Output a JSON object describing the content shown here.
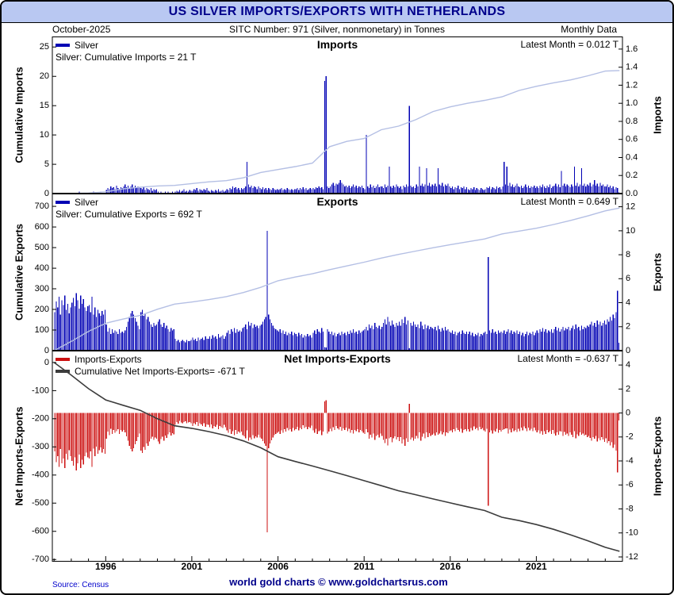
{
  "header": {
    "title": "US SILVER IMPORTS/EXPORTS WITH NETHERLANDS"
  },
  "subheader": {
    "date": "October-2025",
    "sitc": "SITC Number: 971 (Silver, nonmonetary) in Tonnes",
    "frequency": "Monthly Data"
  },
  "footer": {
    "source": "Source: Census",
    "branding": "world gold charts © www.goldchartsrus.com"
  },
  "colors": {
    "title_bg": "#b9c8f2",
    "navy": "#00008b",
    "bar_blue": "#0000b4",
    "cumulative_line_light": "#b4bfe4",
    "bar_red": "#cc1111",
    "net_line": "#3c3c3c"
  },
  "chart_data": {
    "type": "bar",
    "title": "US SILVER IMPORTS/EXPORTS WITH NETHERLANDS",
    "x_domain": [
      1992.9,
      2026.0
    ],
    "x_ticks": [
      1996,
      2001,
      2006,
      2011,
      2016,
      2021
    ],
    "monthly_start_year": 1993,
    "line_x": [
      1993,
      1994,
      1995,
      1996,
      1997,
      1998,
      1999,
      2000,
      2001,
      2002,
      2003,
      2004,
      2005,
      2006,
      2007,
      2008,
      2009,
      2010,
      2011,
      2012,
      2013,
      2014,
      2015,
      2016,
      2017,
      2018,
      2019,
      2020,
      2021,
      2022,
      2023,
      2024,
      2025,
      2025.83
    ],
    "series": {
      "imports_monthly": [
        0,
        0,
        0,
        0,
        0,
        0,
        0,
        0,
        0,
        0,
        0,
        0,
        0,
        0,
        0.01,
        0,
        0,
        0.02,
        0,
        0,
        0,
        0.01,
        0,
        0,
        0,
        0.01,
        0,
        0.02,
        0,
        0,
        0.01,
        0,
        0.02,
        0,
        0.01,
        0,
        0.04,
        0.06,
        0.05,
        0.08,
        0.06,
        0.07,
        0.05,
        0.09,
        0.06,
        0.05,
        0.07,
        0.06,
        0.08,
        0.1,
        0.07,
        0.09,
        0.06,
        0.08,
        0.1,
        0.07,
        0.09,
        0.06,
        0.08,
        0.07,
        0.06,
        0.05,
        0.07,
        0.04,
        0.06,
        0.05,
        0.04,
        0.06,
        0.03,
        0.05,
        0.04,
        0.05,
        0.02,
        0.01,
        0.02,
        0.01,
        0,
        0.02,
        0.01,
        0.02,
        0,
        0.01,
        0.02,
        0.01,
        0.02,
        0.03,
        0.02,
        0.04,
        0.02,
        0.03,
        0.05,
        0.02,
        0.03,
        0.02,
        0.04,
        0.03,
        0.03,
        0.05,
        0.04,
        0.06,
        0.03,
        0.05,
        0.04,
        0.03,
        0.05,
        0.04,
        0.06,
        0.03,
        0.02,
        0.04,
        0.03,
        0.02,
        0.04,
        0.03,
        0.05,
        0.02,
        0.03,
        0.04,
        0.02,
        0.03,
        0.05,
        0.04,
        0.06,
        0.05,
        0.08,
        0.06,
        0.07,
        0.05,
        0.06,
        0.04,
        0.06,
        0.05,
        0.06,
        0.08,
        0.35,
        0.1,
        0.07,
        0.09,
        0.06,
        0.08,
        0.07,
        0.05,
        0.08,
        0.06,
        0.05,
        0.07,
        0.05,
        0.06,
        0.04,
        0.06,
        0.05,
        0.04,
        0.06,
        0.05,
        0.04,
        0.05,
        0.04,
        0.05,
        0.06,
        0.04,
        0.05,
        0.04,
        0.06,
        0.05,
        0.04,
        0.05,
        0.04,
        0.05,
        0.05,
        0.06,
        0.04,
        0.06,
        0.05,
        0.07,
        0.05,
        0.06,
        0.04,
        0.05,
        0.06,
        0.05,
        0.06,
        0.05,
        0.07,
        0.06,
        0.08,
        0.06,
        0.07,
        0.05,
        1.25,
        1.3,
        0.08,
        0.06,
        0.08,
        0.1,
        0.12,
        0.09,
        0.11,
        0.1,
        0.12,
        0.15,
        0.12,
        0.1,
        0.08,
        0.09,
        0.07,
        0.09,
        0.06,
        0.08,
        0.1,
        0.07,
        0.09,
        0.06,
        0.08,
        0.07,
        0.09,
        0.06,
        0.05,
        0.65,
        0.08,
        0.06,
        0.1,
        0.07,
        0.09,
        0.06,
        0.08,
        0.1,
        0.07,
        0.08,
        0.08,
        0.06,
        0.1,
        0.07,
        0.09,
        0.3,
        0.08,
        0.06,
        0.09,
        0.07,
        0.1,
        0.08,
        0.06,
        0.08,
        0.05,
        0.09,
        0.07,
        0.1,
        0.08,
        0.97,
        0.09,
        0.07,
        0.08,
        0.06,
        0.1,
        0.08,
        0.3,
        0.09,
        0.11,
        0.08,
        0.1,
        0.28,
        0.09,
        0.12,
        0.08,
        0.1,
        0.09,
        0.11,
        0.08,
        0.28,
        0.1,
        0.09,
        0.12,
        0.08,
        0.1,
        0.09,
        0.11,
        0.08,
        0.06,
        0.08,
        0.05,
        0.07,
        0.06,
        0.09,
        0.05,
        0.07,
        0.06,
        0.08,
        0.05,
        0.07,
        0.05,
        0.04,
        0.06,
        0.05,
        0.07,
        0.04,
        0.06,
        0.05,
        0.04,
        0.06,
        0.05,
        0.04,
        0.05,
        0.07,
        0.06,
        0.08,
        0.05,
        0.07,
        0.06,
        0.05,
        0.08,
        0.06,
        0.07,
        0.05,
        0.08,
        0.35,
        0.1,
        0.3,
        0.09,
        0.12,
        0.08,
        0.1,
        0.07,
        0.09,
        0.11,
        0.08,
        0.07,
        0.09,
        0.06,
        0.08,
        0.1,
        0.07,
        0.09,
        0.06,
        0.08,
        0.07,
        0.09,
        0.06,
        0.08,
        0.06,
        0.09,
        0.07,
        0.1,
        0.08,
        0.06,
        0.09,
        0.07,
        0.1,
        0.06,
        0.08,
        0.09,
        0.11,
        0.08,
        0.1,
        0.07,
        0.25,
        0.09,
        0.11,
        0.08,
        0.1,
        0.09,
        0.07,
        0.1,
        0.08,
        0.3,
        0.09,
        0.12,
        0.08,
        0.1,
        0.28,
        0.09,
        0.11,
        0.08,
        0.1,
        0.09,
        0.12,
        0.08,
        0.1,
        0.15,
        0.09,
        0.11,
        0.08,
        0.12,
        0.09,
        0.1,
        0.08,
        0.08,
        0.1,
        0.07,
        0.09,
        0.06,
        0.08,
        0.05,
        0.07,
        0.06,
        0.012
      ],
      "exports_monthly": [
        3.2,
        4.1,
        3.6,
        4.5,
        3.0,
        4.2,
        3.8,
        4.6,
        3.4,
        3.9,
        3.1,
        3.6,
        4.0,
        4.4,
        3.7,
        4.8,
        4.2,
        3.5,
        4.6,
        3.9,
        4.3,
        3.6,
        3.3,
        3.7,
        3.8,
        3.2,
        4.5,
        3.0,
        3.6,
        2.8,
        3.4,
        3.1,
        2.9,
        3.3,
        3.0,
        3.4,
        2.2,
        1.6,
        1.9,
        1.4,
        1.8,
        1.5,
        1.7,
        1.6,
        1.4,
        1.8,
        1.5,
        1.6,
        1.5,
        1.7,
        2.0,
        2.4,
        2.8,
        3.1,
        3.3,
        3.0,
        2.7,
        2.4,
        2.1,
        1.8,
        3.2,
        3.4,
        2.9,
        3.1,
        2.6,
        2.8,
        2.4,
        2.2,
        2.0,
        2.3,
        2.1,
        2.2,
        2.4,
        2.6,
        2.2,
        2.0,
        2.3,
        1.9,
        2.1,
        1.8,
        1.6,
        1.9,
        1.7,
        1.8,
        1.0,
        0.8,
        0.9,
        0.7,
        0.8,
        0.9,
        0.8,
        0.7,
        0.9,
        0.8,
        0.8,
        0.9,
        1.1,
        0.9,
        1.0,
        0.8,
        1.1,
        0.9,
        1.0,
        1.1,
        0.9,
        1.2,
        1.0,
        1.0,
        1.2,
        1.0,
        1.3,
        1.1,
        1.2,
        1.0,
        1.4,
        1.1,
        1.2,
        1.3,
        1.0,
        1.2,
        1.5,
        1.7,
        1.4,
        1.8,
        1.6,
        1.9,
        1.5,
        1.8,
        1.6,
        1.7,
        1.6,
        1.9,
        2.0,
        2.2,
        1.8,
        2.4,
        2.1,
        2.3,
        1.9,
        2.2,
        2.0,
        2.1,
        1.9,
        2.1,
        2.2,
        2.4,
        2.6,
        2.8,
        10.0,
        3.0,
        2.6,
        2.3,
        2.1,
        1.9,
        1.8,
        1.7,
        1.6,
        1.8,
        1.5,
        1.7,
        1.4,
        1.6,
        1.3,
        1.5,
        1.4,
        1.6,
        1.3,
        1.5,
        1.4,
        1.2,
        1.5,
        1.3,
        1.4,
        1.1,
        1.3,
        1.2,
        1.4,
        1.2,
        1.3,
        1.1,
        1.5,
        1.7,
        1.4,
        1.8,
        1.6,
        1.5,
        1.9,
        1.6,
        0.3,
        0.25,
        1.8,
        1.6,
        1.4,
        1.6,
        1.3,
        1.5,
        1.2,
        1.4,
        1.5,
        1.3,
        1.6,
        1.4,
        1.5,
        1.3,
        1.6,
        1.4,
        1.7,
        1.5,
        1.8,
        1.5,
        1.6,
        1.4,
        1.7,
        1.5,
        1.6,
        1.7,
        1.8,
        2.0,
        1.7,
        2.2,
        1.9,
        2.1,
        1.8,
        2.3,
        2.0,
        1.9,
        2.1,
        1.8,
        2.0,
        2.3,
        2.6,
        2.2,
        2.8,
        2.4,
        2.1,
        2.5,
        2.2,
        2.0,
        2.3,
        2.1,
        2.4,
        2.1,
        2.6,
        2.3,
        2.8,
        2.2,
        2.5,
        0.2,
        2.3,
        2.1,
        2.4,
        2.2,
        2.0,
        2.2,
        1.9,
        2.4,
        2.1,
        1.8,
        2.2,
        1.9,
        2.1,
        1.8,
        2.0,
        1.9,
        1.8,
        2.0,
        1.7,
        2.1,
        1.8,
        1.6,
        1.9,
        1.7,
        2.0,
        1.7,
        1.8,
        1.6,
        1.5,
        1.7,
        1.4,
        1.6,
        1.3,
        1.5,
        1.6,
        1.4,
        1.7,
        1.5,
        1.4,
        1.6,
        1.4,
        1.6,
        1.3,
        1.5,
        1.2,
        1.4,
        1.3,
        1.5,
        1.2,
        1.4,
        1.3,
        1.5,
        1.6,
        1.4,
        7.8,
        1.7,
        1.5,
        1.8,
        1.5,
        1.6,
        1.4,
        1.7,
        1.5,
        1.6,
        1.5,
        1.7,
        1.4,
        1.6,
        1.8,
        1.5,
        1.7,
        1.4,
        1.6,
        1.5,
        1.7,
        1.4,
        1.6,
        1.3,
        1.5,
        1.2,
        1.4,
        1.6,
        1.3,
        1.5,
        1.4,
        1.6,
        1.3,
        1.5,
        1.7,
        1.5,
        1.8,
        1.6,
        1.9,
        1.6,
        1.8,
        1.5,
        1.7,
        1.6,
        1.8,
        1.5,
        1.8,
        2.0,
        1.7,
        1.9,
        1.6,
        1.8,
        2.0,
        1.7,
        1.9,
        1.8,
        2.0,
        1.7,
        1.9,
        2.1,
        1.8,
        2.2,
        1.9,
        2.0,
        1.7,
        2.1,
        1.8,
        2.0,
        1.9,
        2.1,
        2.0,
        2.2,
        2.4,
        2.1,
        2.3,
        2.0,
        2.5,
        2.2,
        2.4,
        2.1,
        2.3,
        2.5,
        2.2,
        2.6,
        2.4,
        2.8,
        2.5,
        3.0,
        2.7,
        3.2,
        5.0,
        0.649
      ]
    },
    "panels": [
      {
        "title": "Imports",
        "latest": "Latest Month = 0.012 T",
        "legend": [
          {
            "swatch": "#0000b4",
            "label": "Silver"
          },
          {
            "swatch": null,
            "label": "Silver: Cumulative Imports = 21 T"
          }
        ],
        "bars": {
          "series": "imports_monthly",
          "color": "#0000b4"
        },
        "line": {
          "color": "#b4bfe4",
          "width": 1.4,
          "y": [
            0,
            0.03,
            0.1,
            0.3,
            0.8,
            1.1,
            1.3,
            1.4,
            1.7,
            2.0,
            2.2,
            2.7,
            3.6,
            4.1,
            4.6,
            5.2,
            8.0,
            8.9,
            9.4,
            10.9,
            11.5,
            12.6,
            14.0,
            14.8,
            15.4,
            15.9,
            16.5,
            17.6,
            18.3,
            18.9,
            19.4,
            20.1,
            20.9,
            21
          ]
        },
        "left_axis": {
          "title": "Cumulative Imports",
          "ticks": [
            25,
            20,
            15,
            10,
            5,
            0
          ],
          "domain": [
            26.8,
            0
          ]
        },
        "right_axis": {
          "title": "Imports",
          "ticks": [
            1.6,
            1.4,
            1.2,
            1.0,
            0.8,
            0.6,
            0.4,
            0.2,
            0.0
          ],
          "domain": [
            1.74,
            0
          ],
          "decimals": 1
        }
      },
      {
        "title": "Exports",
        "latest": "Latest Month = 0.649 T",
        "legend": [
          {
            "swatch": "#0000b4",
            "label": "Silver"
          },
          {
            "swatch": null,
            "label": "Silver: Cumulative Exports = 692 T"
          }
        ],
        "bars": {
          "series": "exports_monthly",
          "color": "#0000b4"
        },
        "line": {
          "color": "#b4bfe4",
          "width": 1.4,
          "y": [
            0,
            45,
            93,
            133,
            153,
            171,
            201,
            226,
            236,
            248,
            262,
            282,
            307,
            339,
            357,
            373,
            393,
            411,
            429,
            449,
            467,
            483,
            499,
            514,
            528,
            542,
            566,
            580,
            594,
            612,
            632,
            654,
            678,
            692
          ]
        },
        "left_axis": {
          "title": "Cumulative Exports",
          "ticks": [
            700,
            600,
            500,
            400,
            300,
            200,
            100,
            0
          ],
          "domain": [
            762,
            0
          ]
        },
        "right_axis": {
          "title": "Exports",
          "ticks": [
            12,
            10,
            8,
            6,
            4,
            2,
            0
          ],
          "domain": [
            13.1,
            0
          ]
        }
      },
      {
        "title": "Net Imports-Exports",
        "latest": "Latest Month = -0.637 T",
        "legend": [
          {
            "swatch": "#cc1111",
            "label": "Imports-Exports"
          },
          {
            "swatch": "#3c3c3c",
            "label": "Cumulative Net Imports-Exports= -671 T"
          }
        ],
        "bars": {
          "series": "net_monthly",
          "color": "#cc1111"
        },
        "line": {
          "color": "#3c3c3c",
          "width": 1.6,
          "y": [
            0,
            -45,
            -93,
            -133,
            -152,
            -170,
            -200,
            -225,
            -234,
            -246,
            -260,
            -279,
            -303,
            -335,
            -352,
            -368,
            -385,
            -402,
            -420,
            -438,
            -456,
            -470,
            -485,
            -499,
            -513,
            -526,
            -550,
            -562,
            -576,
            -593,
            -613,
            -634,
            -657,
            -671
          ]
        },
        "left_axis": {
          "title": "Net Imports-Exports",
          "ticks": [
            0,
            -100,
            -200,
            -300,
            -400,
            -500,
            -600,
            -700
          ],
          "domain": [
            42,
            -708
          ]
        },
        "right_axis": {
          "title": "Imports-Exports",
          "ticks": [
            4,
            2,
            0,
            -2,
            -4,
            -6,
            -8,
            -10,
            -12
          ],
          "domain": [
            5.2,
            -12.4
          ]
        },
        "x_axis": true
      }
    ]
  }
}
